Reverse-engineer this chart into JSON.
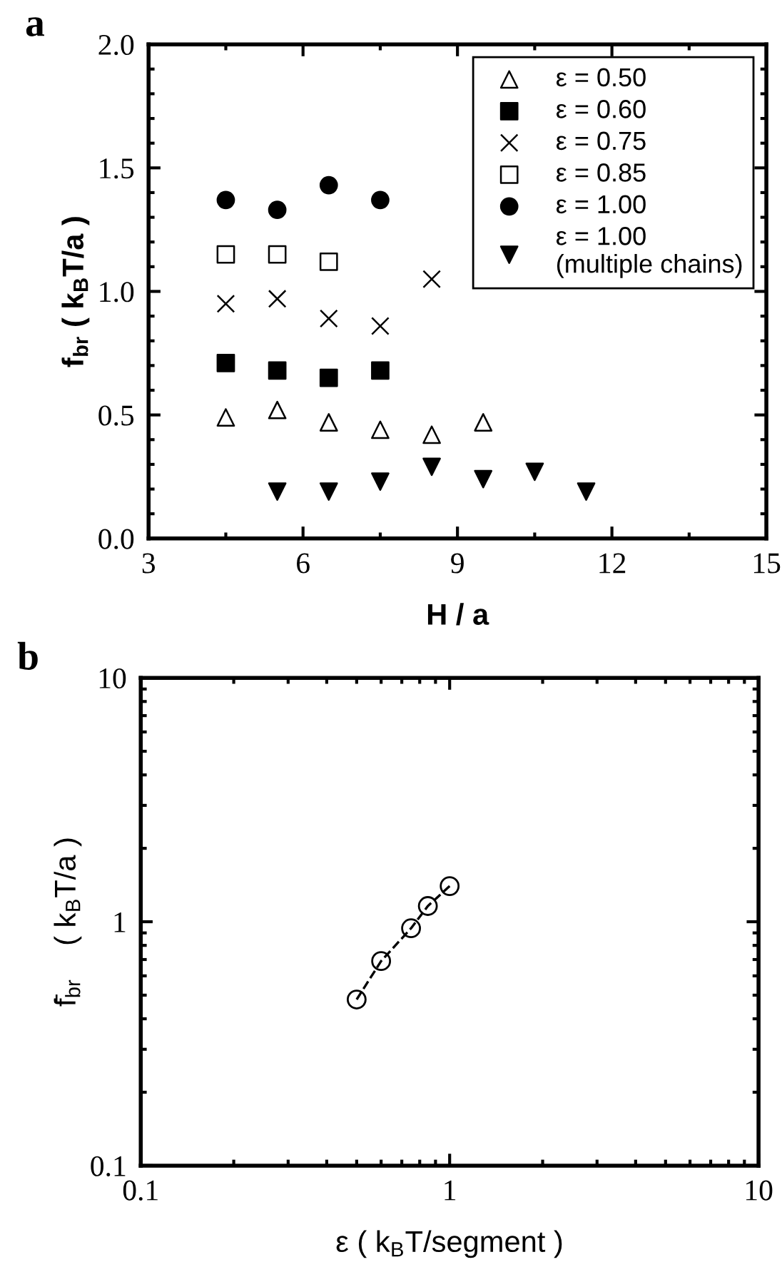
{
  "chart_data": [
    {
      "type": "scatter",
      "title": "a",
      "xlabel": "H / a",
      "ylabel": "f$_{br}$ ( k$_{B}$T/a )",
      "xlim": [
        3,
        15
      ],
      "xticks": [
        3,
        6,
        9,
        12,
        15
      ],
      "ylim": [
        0,
        2
      ],
      "yticks": [
        {
          "value": 0,
          "label": "0.0"
        },
        {
          "value": 0.5,
          "label": "0.5"
        },
        {
          "value": 1,
          "label": "1.0"
        },
        {
          "value": 1.5,
          "label": "1.5"
        },
        {
          "value": 2,
          "label": "2.0"
        }
      ],
      "grid": false,
      "legend": "top right",
      "series": [
        {
          "name": "ε = 0.50",
          "color": "#000000",
          "marker": "triangle_open",
          "x": [
            4.5,
            5.5,
            6.5,
            7.5,
            8.5,
            9.5
          ],
          "values": [
            0.49,
            0.52,
            0.47,
            0.44,
            0.42,
            0.47
          ]
        },
        {
          "name": "ε = 0.60",
          "color": "#000000",
          "marker": "square",
          "x": [
            4.5,
            5.5,
            6.5,
            7.5
          ],
          "values": [
            0.71,
            0.68,
            0.65,
            0.68
          ]
        },
        {
          "name": "ε = 0.75",
          "color": "#000000",
          "marker": "cross",
          "x": [
            4.5,
            5.5,
            6.5,
            7.5,
            8.5
          ],
          "values": [
            0.95,
            0.97,
            0.89,
            0.86,
            1.05
          ]
        },
        {
          "name": "ε = 0.85",
          "color": "#000000",
          "marker": "square_open",
          "x": [
            4.5,
            5.5,
            6.5
          ],
          "values": [
            1.15,
            1.15,
            1.12
          ]
        },
        {
          "name": "ε = 1.00",
          "color": "#000000",
          "marker": "circle",
          "x": [
            4.5,
            5.5,
            6.5,
            7.5
          ],
          "values": [
            1.37,
            1.33,
            1.43,
            1.37
          ]
        },
        {
          "name": "ε = 1.00\n(multiple chains)",
          "color": "#000000",
          "marker": "triangle_down",
          "x": [
            5.5,
            6.5,
            7.5,
            8.5,
            9.5,
            10.5,
            11.5
          ],
          "values": [
            0.19,
            0.19,
            0.23,
            0.29,
            0.24,
            0.27,
            0.19
          ]
        }
      ]
    },
    {
      "type": "line",
      "title": "b",
      "xlabel": "ε ( k$_{B}$T/segment )",
      "ylabel": "f̄$_{br}$    ( k$_{B}$T/a )",
      "log": "xy",
      "xlim": [
        0.1,
        10
      ],
      "xticks": [
        0.1,
        1,
        10
      ],
      "ylim": [
        0.1,
        10
      ],
      "yticks": [
        0.1,
        1,
        10
      ],
      "grid": false,
      "legend": false,
      "marker": "circle_open",
      "line_style": "dashed",
      "series": [
        {
          "color": "#000000",
          "x": [
            0.5,
            0.6,
            0.75,
            0.85,
            1.0
          ],
          "values": [
            0.48,
            0.69,
            0.94,
            1.16,
            1.4
          ]
        }
      ]
    }
  ]
}
